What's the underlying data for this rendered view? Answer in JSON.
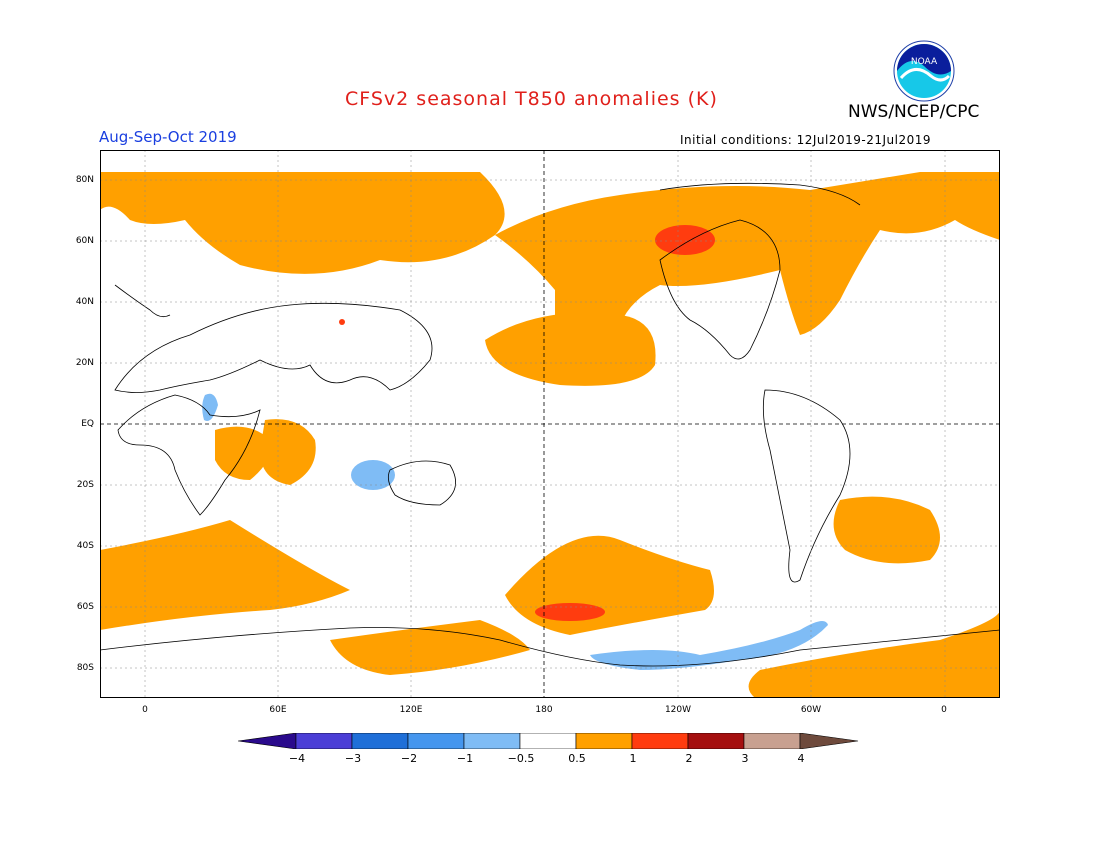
{
  "header": {
    "title": "CFSv2 seasonal T850 anomalies (K)",
    "agency": "NWS/NCEP/CPC",
    "season": "Aug-Sep-Oct 2019",
    "initial_conditions": "Initial conditions: 12Jul2019-21Jul2019",
    "logo_text": "NOAA"
  },
  "axes": {
    "lat_labels": [
      "80N",
      "60N",
      "40N",
      "20N",
      "EQ",
      "20S",
      "40S",
      "60S",
      "80S"
    ],
    "lon_labels": [
      "0",
      "60E",
      "120E",
      "180",
      "120W",
      "60W",
      "0"
    ]
  },
  "legend": {
    "labels": [
      "−4",
      "−3",
      "−2",
      "−1",
      "−0.5",
      "0.5",
      "1",
      "2",
      "3",
      "4"
    ],
    "colors": [
      "#2a0a8c",
      "#4b3ed6",
      "#1f6fd8",
      "#4596ee",
      "#7fbcf5",
      "#ffffff",
      "#ffa000",
      "#ff3c0f",
      "#a50f0f",
      "#c8a090",
      "#6e4a3c"
    ]
  },
  "map": {
    "anomaly_regions": [
      {
        "level": "0.5-1",
        "area": "Arctic / North Pacific / North America"
      },
      {
        "level": "1-2",
        "area": "Hudson Bay region"
      },
      {
        "level": "1-2",
        "area": "South Pacific ~60S 180"
      },
      {
        "level": "-1 to -0.5",
        "area": "Indian Ocean ~20S 100E"
      },
      {
        "level": "-1 to -0.5",
        "area": "Southern Ocean ~70S 90W"
      }
    ]
  }
}
